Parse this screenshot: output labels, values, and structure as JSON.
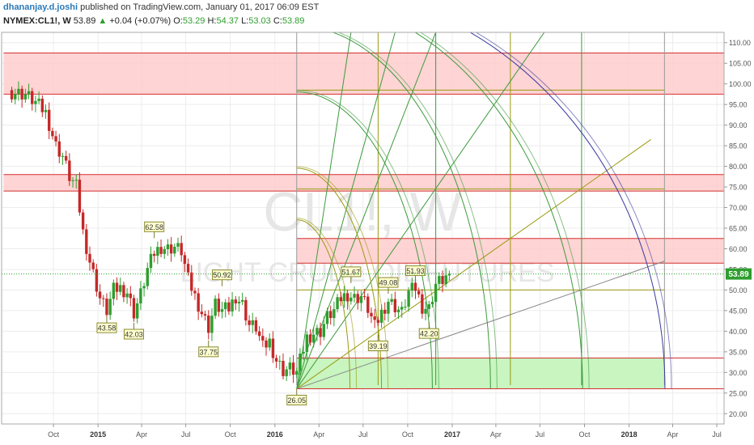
{
  "header": {
    "author": "dhananjay.d.joshi",
    "published": "published on TradingView.com, January 01, 2017 06:09 EST",
    "symbol": "NYMEX:CL1!, W",
    "last": "53.89",
    "change_arrow": "▲",
    "change": "+0.04 (+0.07%)",
    "o_label": "O:",
    "o_value": "53.29",
    "h_label": "H:",
    "h_value": "54.37",
    "l_label": "L:",
    "l_value": "53.03",
    "c_label": "C:",
    "c_value": "53.89"
  },
  "watermark": {
    "symbol": "CL1!, W",
    "description": "LIGHT CRUDE OIL FUTURES"
  },
  "colors": {
    "up": "#2e9e2e",
    "down": "#c62828",
    "resistance_zone": "#ffcccc",
    "resistance_line": "#d32f2f",
    "support_zone": "#c8f5c0",
    "grid": "#ececec",
    "arc_green": "#3c9a3c",
    "arc_olive": "#9a9a10",
    "arc_blue": "#3a3aa0",
    "price_label": "#2e9e2e"
  },
  "chart_data": {
    "type": "candlestick",
    "title": "NYMEX:CL1!, W",
    "ylim": [
      17.5,
      112.5
    ],
    "y_ticks": [
      "20.00",
      "25.00",
      "30.00",
      "35.00",
      "40.00",
      "45.00",
      "50.00",
      "55.00",
      "60.00",
      "65.00",
      "70.00",
      "75.00",
      "80.00",
      "85.00",
      "90.00",
      "95.00",
      "100.00",
      "105.00",
      "110.00"
    ],
    "x_ticks": [
      {
        "label": "Oct",
        "date": "2014-10-01"
      },
      {
        "label": "2015",
        "date": "2015-01-01"
      },
      {
        "label": "Apr",
        "date": "2015-04-01"
      },
      {
        "label": "Jul",
        "date": "2015-07-01"
      },
      {
        "label": "Oct",
        "date": "2015-10-01"
      },
      {
        "label": "2016",
        "date": "2016-01-01"
      },
      {
        "label": "Apr",
        "date": "2016-04-01"
      },
      {
        "label": "Jul",
        "date": "2016-07-01"
      },
      {
        "label": "Oct",
        "date": "2016-10-01"
      },
      {
        "label": "2017",
        "date": "2017-01-01"
      },
      {
        "label": "Apr",
        "date": "2017-04-01"
      },
      {
        "label": "Jul",
        "date": "2017-07-01"
      },
      {
        "label": "Oct",
        "date": "2017-10-01"
      },
      {
        "label": "2018",
        "date": "2018-01-01"
      },
      {
        "label": "Apr",
        "date": "2018-04-01"
      },
      {
        "label": "Jul",
        "date": "2018-07-01"
      }
    ],
    "close_path": [
      [
        "2014-07-07",
        98.0
      ],
      [
        "2014-08-04",
        97.5
      ],
      [
        "2014-08-25",
        95.5
      ],
      [
        "2014-09-15",
        93.0
      ],
      [
        "2014-10-06",
        85.0
      ],
      [
        "2014-10-20",
        82.5
      ],
      [
        "2014-11-03",
        77.5
      ],
      [
        "2014-11-17",
        75.0
      ],
      [
        "2014-12-01",
        64.0
      ],
      [
        "2014-12-15",
        57.0
      ],
      [
        "2015-01-05",
        48.0
      ],
      [
        "2015-01-19",
        45.0
      ],
      [
        "2015-02-02",
        50.0
      ],
      [
        "2015-02-16",
        50.5
      ],
      [
        "2015-03-02",
        49.5
      ],
      [
        "2015-03-16",
        44.5
      ],
      [
        "2015-03-30",
        49.0
      ],
      [
        "2015-04-13",
        55.0
      ],
      [
        "2015-04-27",
        59.0
      ],
      [
        "2015-05-11",
        60.5
      ],
      [
        "2015-05-25",
        60.0
      ],
      [
        "2015-06-08",
        60.5
      ],
      [
        "2015-06-22",
        59.5
      ],
      [
        "2015-07-06",
        52.5
      ],
      [
        "2015-07-20",
        48.5
      ],
      [
        "2015-08-03",
        44.5
      ],
      [
        "2015-08-17",
        41.0
      ],
      [
        "2015-08-31",
        46.5
      ],
      [
        "2015-09-14",
        45.0
      ],
      [
        "2015-09-28",
        45.5
      ],
      [
        "2015-10-12",
        48.5
      ],
      [
        "2015-10-26",
        46.5
      ],
      [
        "2015-11-09",
        41.5
      ],
      [
        "2015-11-23",
        41.0
      ],
      [
        "2015-12-07",
        36.0
      ],
      [
        "2015-12-21",
        37.5
      ],
      [
        "2016-01-04",
        33.0
      ],
      [
        "2016-01-18",
        30.5
      ],
      [
        "2016-02-01",
        31.0
      ],
      [
        "2016-02-15",
        30.0
      ],
      [
        "2016-03-07",
        38.5
      ],
      [
        "2016-03-21",
        39.5
      ],
      [
        "2016-04-04",
        40.0
      ],
      [
        "2016-04-18",
        43.5
      ],
      [
        "2016-05-02",
        45.0
      ],
      [
        "2016-05-16",
        48.0
      ],
      [
        "2016-05-30",
        49.0
      ],
      [
        "2016-06-13",
        48.0
      ],
      [
        "2016-06-27",
        48.5
      ],
      [
        "2016-07-11",
        45.5
      ],
      [
        "2016-07-25",
        41.0
      ],
      [
        "2016-08-08",
        44.5
      ],
      [
        "2016-08-22",
        47.5
      ],
      [
        "2016-09-05",
        46.0
      ],
      [
        "2016-09-19",
        44.5
      ],
      [
        "2016-10-03",
        49.5
      ],
      [
        "2016-10-17",
        50.5
      ],
      [
        "2016-10-31",
        46.0
      ],
      [
        "2016-11-14",
        45.5
      ],
      [
        "2016-11-28",
        51.5
      ],
      [
        "2016-12-12",
        52.5
      ],
      [
        "2016-12-26",
        53.89
      ]
    ],
    "highlighted_points": [
      {
        "date": "2015-04-27",
        "value": 62.58,
        "label": "62.58",
        "position": "above"
      },
      {
        "date": "2015-01-19",
        "value": 43.58,
        "label": "43.58",
        "position": "below"
      },
      {
        "date": "2015-03-16",
        "value": 42.03,
        "label": "42.03",
        "position": "below"
      },
      {
        "date": "2015-09-14",
        "value": 50.92,
        "label": "50.92",
        "position": "above"
      },
      {
        "date": "2015-08-17",
        "value": 37.75,
        "label": "37.75",
        "position": "below"
      },
      {
        "date": "2016-02-15",
        "value": 26.05,
        "label": "26.05",
        "position": "below"
      },
      {
        "date": "2016-06-06",
        "value": 51.67,
        "label": "51.67",
        "position": "above"
      },
      {
        "date": "2016-08-01",
        "value": 39.19,
        "label": "39.19",
        "position": "below"
      },
      {
        "date": "2016-08-22",
        "value": 49.08,
        "label": "49.08",
        "position": "above"
      },
      {
        "date": "2016-10-17",
        "value": 51.93,
        "label": "51.93",
        "position": "above"
      },
      {
        "date": "2016-11-14",
        "value": 42.2,
        "label": "42.20",
        "position": "below"
      }
    ],
    "current_price": {
      "value": 53.89,
      "label": "53.89"
    },
    "resistance_zones": [
      {
        "from": 97.5,
        "to": 107.5,
        "start_date": "2014-06-20"
      },
      {
        "from": 74.0,
        "to": 78.0,
        "start_date": "2014-06-20"
      },
      {
        "from": 56.5,
        "to": 62.5,
        "start_date": "2016-02-15"
      }
    ],
    "support_zone": {
      "from": 26.05,
      "to": 33.5,
      "start_date": "2016-02-15",
      "end_date": "2018-03-15"
    },
    "gann_box": {
      "start_date": "2016-02-15",
      "end_date": "2018-03-15",
      "low": 26.05,
      "high": 112.5
    },
    "vertical_lines": [
      "2016-02-15",
      "2016-08-01",
      "2016-11-28",
      "2017-05-01",
      "2017-09-25",
      "2018-03-15"
    ],
    "fan_targets": [
      {
        "date": "2016-06-06",
        "value": 112.5
      },
      {
        "date": "2016-09-05",
        "value": 112.5
      },
      {
        "date": "2016-11-28",
        "value": 112.5
      },
      {
        "date": "2017-07-10",
        "value": 112.5
      },
      {
        "date": "2018-02-15",
        "value": 86.5
      },
      {
        "date": "2018-03-15",
        "value": 57.0
      }
    ],
    "arcs": [
      {
        "radius_days": 110,
        "radius_value": 41.0,
        "color": "olive"
      },
      {
        "radius_days": 175,
        "radius_value": 53.5,
        "color": "olive"
      },
      {
        "radius_days": 280,
        "radius_value": 72.0,
        "color": "green"
      },
      {
        "radius_days": 400,
        "radius_value": 88.0,
        "color": "green"
      },
      {
        "radius_days": 590,
        "radius_value": 95.0,
        "color": "green"
      },
      {
        "radius_days": 760,
        "radius_value": 98.0,
        "color": "blue"
      }
    ]
  }
}
